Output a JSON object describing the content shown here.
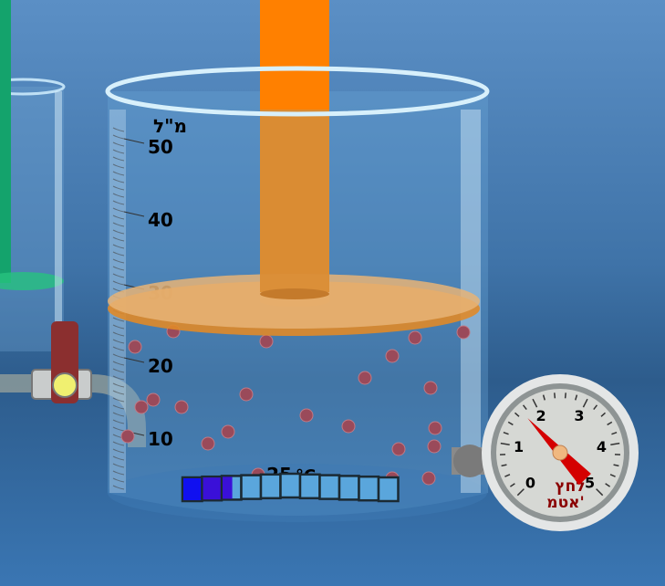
{
  "scale": {
    "unit": "מ\"ל",
    "ticks": [
      "50",
      "40",
      "30",
      "20",
      "10"
    ]
  },
  "volume_ml": 30,
  "temperature": {
    "value": "25",
    "unit": "°C",
    "bar_cells": 11,
    "filled_fraction": 0.23
  },
  "gauge": {
    "label_line1": "לחץ",
    "label_line2": "אטמ'",
    "ticks": [
      "0",
      "1",
      "2",
      "3",
      "4",
      "5"
    ],
    "value": 1.7,
    "max": 5
  },
  "colors": {
    "piston_rod": "#ff8000",
    "piston_plate": "#e8b477",
    "particle": "#9a4a5a",
    "needle": "#d40000",
    "green_liquid": "#1faa6e"
  }
}
